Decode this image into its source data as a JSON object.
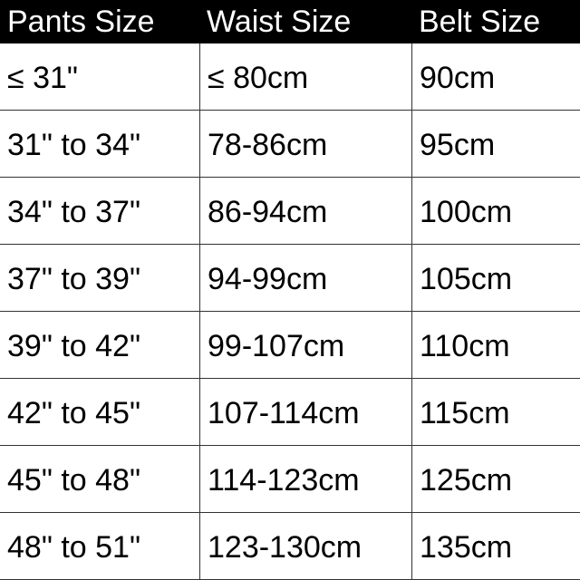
{
  "table": {
    "header": [
      "Pants Size",
      "Waist Size",
      "Belt Size"
    ],
    "rows": [
      [
        "≤ 31\"",
        "≤ 80cm",
        "90cm"
      ],
      [
        "31\" to 34\"",
        "78-86cm",
        "95cm"
      ],
      [
        "34\" to 37\"",
        "86-94cm",
        "100cm"
      ],
      [
        "37\" to 39\"",
        "94-99cm",
        "105cm"
      ],
      [
        "39\" to 42\"",
        "99-107cm",
        "110cm"
      ],
      [
        "42\" to 45\"",
        "107-114cm",
        "115cm"
      ],
      [
        "45\" to 48\"",
        "114-123cm",
        "125cm"
      ],
      [
        "48\" to 51\"",
        "123-130cm",
        "135cm"
      ]
    ]
  }
}
